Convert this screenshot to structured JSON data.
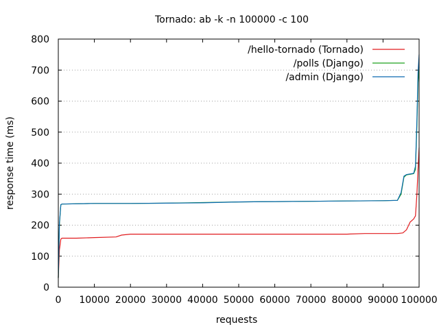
{
  "chart_data": {
    "type": "line",
    "title": "Tornado: ab -k -n 100000 -c 100",
    "xlabel": "requests",
    "ylabel": "response time (ms)",
    "xlim": [
      0,
      100000
    ],
    "ylim": [
      0,
      800
    ],
    "x_ticks": [
      0,
      10000,
      20000,
      30000,
      40000,
      50000,
      60000,
      70000,
      80000,
      90000,
      100000
    ],
    "y_ticks": [
      0,
      100,
      200,
      300,
      400,
      500,
      600,
      700,
      800
    ],
    "grid": "dotted horizontal",
    "legend_position": "top-right",
    "series": [
      {
        "name": "/hello-tornado (Tornado)",
        "color": "#e0191c",
        "x": [
          0,
          300,
          700,
          1000,
          5000,
          10000,
          16000,
          17500,
          20000,
          30000,
          40000,
          50000,
          60000,
          70000,
          80000,
          85000,
          90000,
          94000,
          95500,
          96500,
          97500,
          98500,
          99000,
          99400,
          99700,
          100000
        ],
        "y": [
          30,
          120,
          155,
          158,
          158,
          160,
          162,
          168,
          171,
          171,
          171,
          171,
          171,
          171,
          171,
          173,
          173,
          173,
          175,
          185,
          210,
          220,
          230,
          300,
          380,
          450
        ]
      },
      {
        "name": "/polls (Django)",
        "color": "#1ca01c",
        "x": [
          0,
          300,
          700,
          1000,
          10000,
          20000,
          30000,
          40000,
          50000,
          60000,
          70000,
          80000,
          90000,
          94000,
          95000,
          95800,
          96500,
          98500,
          99000,
          99400,
          99700,
          100000
        ],
        "y": [
          30,
          200,
          266,
          268,
          270,
          270,
          271,
          273,
          275,
          276,
          277,
          278,
          279,
          280,
          300,
          355,
          362,
          366,
          380,
          520,
          660,
          710
        ]
      },
      {
        "name": "/admin (Django)",
        "color": "#0a68b0",
        "x": [
          0,
          300,
          700,
          1000,
          10000,
          20000,
          30000,
          40000,
          50000,
          60000,
          70000,
          80000,
          90000,
          94000,
          95000,
          95800,
          96500,
          98500,
          99000,
          99400,
          99700,
          100000
        ],
        "y": [
          30,
          205,
          266,
          268,
          270,
          270,
          271,
          272,
          275,
          276,
          277,
          278,
          279,
          280,
          305,
          358,
          363,
          367,
          390,
          540,
          690,
          750
        ]
      }
    ]
  }
}
